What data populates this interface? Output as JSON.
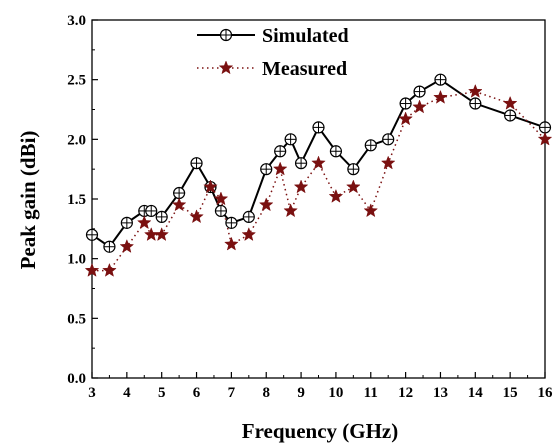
{
  "chart_data": {
    "type": "line",
    "title": "",
    "xlabel": "Frequency (GHz)",
    "ylabel": "Peak gain (dBi)",
    "xlim": [
      3,
      16
    ],
    "ylim": [
      0.0,
      3.0
    ],
    "x_ticks": [
      3,
      4,
      5,
      6,
      7,
      8,
      9,
      10,
      11,
      12,
      13,
      14,
      15,
      16
    ],
    "y_ticks": [
      0.0,
      0.5,
      1.0,
      1.5,
      2.0,
      2.5,
      3.0
    ],
    "x_tick_labels": [
      "3",
      "4",
      "5",
      "6",
      "7",
      "8",
      "9",
      "10",
      "11",
      "12",
      "13",
      "14",
      "15",
      "16"
    ],
    "y_tick_labels": [
      "0.0",
      "0.5",
      "1.0",
      "1.5",
      "2.0",
      "2.5",
      "3.0"
    ],
    "grid": false,
    "legend_position": "top-left",
    "series": [
      {
        "name": "Simulated",
        "style": "solid line with circled-plus markers",
        "color": "#000000",
        "x": [
          3.0,
          3.5,
          4.0,
          4.5,
          4.7,
          5.0,
          5.5,
          6.0,
          6.4,
          6.7,
          7.0,
          7.5,
          8.0,
          8.4,
          8.7,
          9.0,
          9.5,
          10.0,
          10.5,
          11.0,
          11.5,
          12.0,
          12.4,
          13.0,
          14.0,
          15.0,
          16.0
        ],
        "y": [
          1.2,
          1.1,
          1.3,
          1.4,
          1.4,
          1.35,
          1.55,
          1.8,
          1.6,
          1.4,
          1.3,
          1.35,
          1.75,
          1.9,
          2.0,
          1.8,
          2.1,
          1.9,
          1.75,
          1.95,
          2.0,
          2.3,
          2.4,
          2.5,
          2.3,
          2.2,
          2.1
        ]
      },
      {
        "name": "Measured",
        "style": "dotted line with star markers",
        "color": "#7a1010",
        "x": [
          3.0,
          3.5,
          4.0,
          4.5,
          4.7,
          5.0,
          5.5,
          6.0,
          6.4,
          6.7,
          7.0,
          7.5,
          8.0,
          8.4,
          8.7,
          9.0,
          9.5,
          10.0,
          10.5,
          11.0,
          11.5,
          12.0,
          12.4,
          13.0,
          14.0,
          15.0,
          16.0
        ],
        "y": [
          0.9,
          0.9,
          1.1,
          1.3,
          1.2,
          1.2,
          1.45,
          1.35,
          1.6,
          1.5,
          1.12,
          1.2,
          1.45,
          1.75,
          1.4,
          1.6,
          1.8,
          1.52,
          1.6,
          1.4,
          1.8,
          2.17,
          2.27,
          2.35,
          2.4,
          2.3,
          2.0
        ]
      }
    ]
  }
}
